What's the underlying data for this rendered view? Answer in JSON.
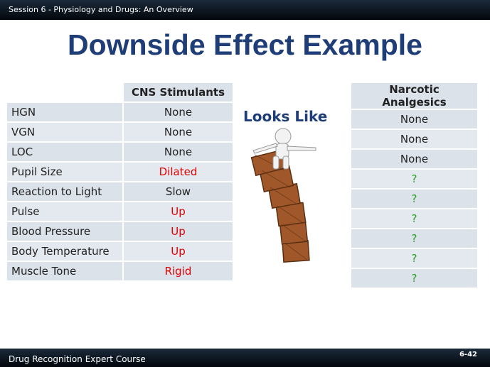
{
  "header": {
    "session": "Session 6 - Physiology and Drugs: An Overview"
  },
  "title": "Downside Effect Example",
  "left_table": {
    "header": "CNS Stimulants",
    "rows": [
      [
        "HGN",
        "None"
      ],
      [
        "VGN",
        "None"
      ],
      [
        "LOC",
        "None"
      ],
      [
        "Pupil Size",
        "Dilated"
      ],
      [
        "Reaction to Light",
        "Slow"
      ],
      [
        "Pulse",
        "Up"
      ],
      [
        "Blood Pressure",
        "Up"
      ],
      [
        "Body Temperature",
        "Up"
      ],
      [
        "Muscle Tone",
        "Rigid"
      ]
    ]
  },
  "looks_like": "Looks Like",
  "right_table": {
    "header": "Narcotic Analgesics",
    "rows": [
      "None",
      "None",
      "None",
      "?",
      "?",
      "?",
      "?",
      "?",
      "?"
    ]
  },
  "footer": {
    "course": "Drug Recognition Expert Course",
    "page": "6-42"
  }
}
